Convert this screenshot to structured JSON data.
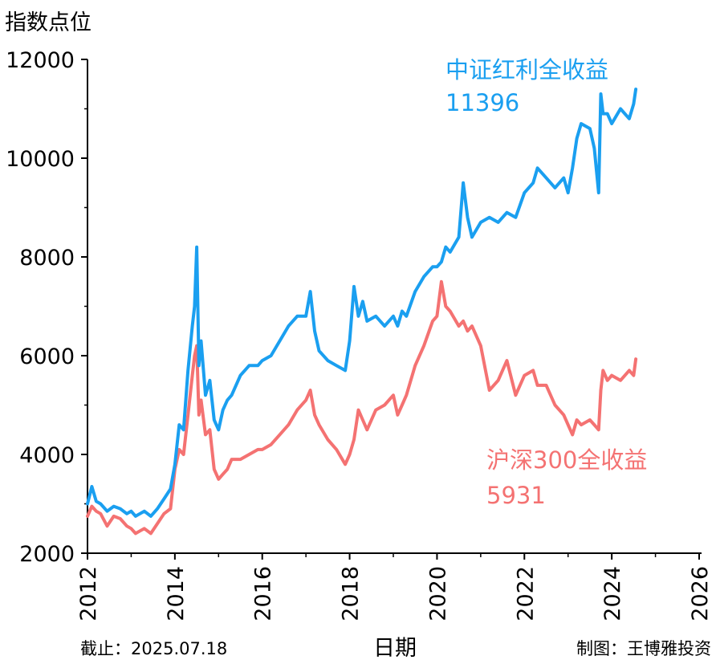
{
  "chart_data": {
    "type": "line",
    "ylabel": "指数点位",
    "xlabel": "日期",
    "ylim": [
      2000,
      12000
    ],
    "yticks": [
      2000,
      4000,
      6000,
      8000,
      10000,
      12000
    ],
    "xlim": [
      2012,
      2026
    ],
    "xticks": [
      2012,
      2014,
      2016,
      2018,
      2020,
      2022,
      2024,
      2026
    ],
    "footer_left": "截止：2025.07.18",
    "footer_right": "制图：王博雅投资",
    "series": [
      {
        "name": "中证红利全收益",
        "end_label": "11396",
        "color": "#1a9ff0",
        "x": [
          2012.0,
          2012.1,
          2012.2,
          2012.3,
          2012.45,
          2012.6,
          2012.75,
          2012.9,
          2013.0,
          2013.1,
          2013.2,
          2013.3,
          2013.45,
          2013.6,
          2013.75,
          2013.9,
          2014.0,
          2014.1,
          2014.2,
          2014.3,
          2014.4,
          2014.45,
          2014.5,
          2014.55,
          2014.6,
          2014.7,
          2014.8,
          2014.9,
          2015.0,
          2015.1,
          2015.2,
          2015.3,
          2015.5,
          2015.7,
          2015.9,
          2016.0,
          2016.2,
          2016.4,
          2016.6,
          2016.8,
          2017.0,
          2017.1,
          2017.2,
          2017.3,
          2017.5,
          2017.7,
          2017.9,
          2018.0,
          2018.1,
          2018.2,
          2018.3,
          2018.4,
          2018.6,
          2018.8,
          2019.0,
          2019.1,
          2019.2,
          2019.3,
          2019.5,
          2019.7,
          2019.9,
          2020.0,
          2020.1,
          2020.2,
          2020.3,
          2020.5,
          2020.6,
          2020.7,
          2020.8,
          2021.0,
          2021.2,
          2021.4,
          2021.6,
          2021.8,
          2022.0,
          2022.2,
          2022.3,
          2022.5,
          2022.7,
          2022.9,
          2023.0,
          2023.1,
          2023.2,
          2023.3,
          2023.5,
          2023.6,
          2023.7,
          2023.75,
          2023.8,
          2023.9,
          2024.0,
          2024.2,
          2024.4,
          2024.5,
          2024.55
        ],
        "y": [
          3000,
          3350,
          3050,
          3000,
          2850,
          2950,
          2900,
          2800,
          2850,
          2750,
          2800,
          2850,
          2750,
          2900,
          3100,
          3300,
          3800,
          4600,
          4500,
          5700,
          6600,
          7000,
          8200,
          5800,
          6300,
          5200,
          5500,
          4700,
          4500,
          4900,
          5100,
          5200,
          5600,
          5800,
          5800,
          5900,
          6000,
          6300,
          6600,
          6800,
          6800,
          7300,
          6500,
          6100,
          5900,
          5800,
          5700,
          6300,
          7400,
          6800,
          7100,
          6700,
          6800,
          6600,
          6800,
          6600,
          6900,
          6800,
          7300,
          7600,
          7800,
          7800,
          7900,
          8200,
          8100,
          8400,
          9500,
          8800,
          8400,
          8700,
          8800,
          8700,
          8900,
          8800,
          9300,
          9500,
          9800,
          9600,
          9400,
          9600,
          9300,
          9800,
          10400,
          10700,
          10600,
          10200,
          9300,
          11300,
          10900,
          10900,
          10700,
          11000,
          10800,
          11100,
          11396
        ]
      },
      {
        "name": "沪深300全收益",
        "end_label": "5931",
        "color": "#f47272",
        "x": [
          2012.0,
          2012.1,
          2012.2,
          2012.3,
          2012.45,
          2012.6,
          2012.75,
          2012.9,
          2013.0,
          2013.1,
          2013.2,
          2013.3,
          2013.45,
          2013.6,
          2013.75,
          2013.9,
          2014.0,
          2014.1,
          2014.2,
          2014.3,
          2014.4,
          2014.45,
          2014.5,
          2014.55,
          2014.6,
          2014.7,
          2014.8,
          2014.9,
          2015.0,
          2015.1,
          2015.2,
          2015.3,
          2015.5,
          2015.7,
          2015.9,
          2016.0,
          2016.2,
          2016.4,
          2016.6,
          2016.8,
          2017.0,
          2017.1,
          2017.2,
          2017.3,
          2017.5,
          2017.7,
          2017.9,
          2018.0,
          2018.1,
          2018.2,
          2018.3,
          2018.4,
          2018.6,
          2018.8,
          2019.0,
          2019.1,
          2019.2,
          2019.3,
          2019.5,
          2019.7,
          2019.9,
          2020.0,
          2020.1,
          2020.2,
          2020.3,
          2020.5,
          2020.6,
          2020.7,
          2020.8,
          2021.0,
          2021.2,
          2021.4,
          2021.6,
          2021.8,
          2022.0,
          2022.2,
          2022.3,
          2022.5,
          2022.7,
          2022.9,
          2023.0,
          2023.1,
          2023.2,
          2023.3,
          2023.5,
          2023.6,
          2023.7,
          2023.75,
          2023.8,
          2023.9,
          2024.0,
          2024.2,
          2024.4,
          2024.5,
          2024.55
        ],
        "y": [
          2750,
          2950,
          2850,
          2800,
          2550,
          2750,
          2700,
          2550,
          2500,
          2400,
          2450,
          2500,
          2400,
          2600,
          2800,
          2900,
          3700,
          4100,
          4000,
          4800,
          5600,
          6000,
          6200,
          4800,
          5100,
          4400,
          4500,
          3700,
          3500,
          3600,
          3700,
          3900,
          3900,
          4000,
          4100,
          4100,
          4200,
          4400,
          4600,
          4900,
          5100,
          5300,
          4800,
          4600,
          4300,
          4100,
          3800,
          4000,
          4300,
          4900,
          4700,
          4500,
          4900,
          5000,
          5200,
          4800,
          5000,
          5200,
          5800,
          6200,
          6700,
          6800,
          7500,
          7000,
          6900,
          6600,
          6700,
          6500,
          6600,
          6200,
          5300,
          5500,
          5900,
          5200,
          5600,
          5700,
          5400,
          5400,
          5000,
          4800,
          4600,
          4400,
          4700,
          4600,
          4700,
          4600,
          4500,
          5300,
          5700,
          5500,
          5600,
          5500,
          5700,
          5600,
          5931
        ]
      }
    ]
  }
}
